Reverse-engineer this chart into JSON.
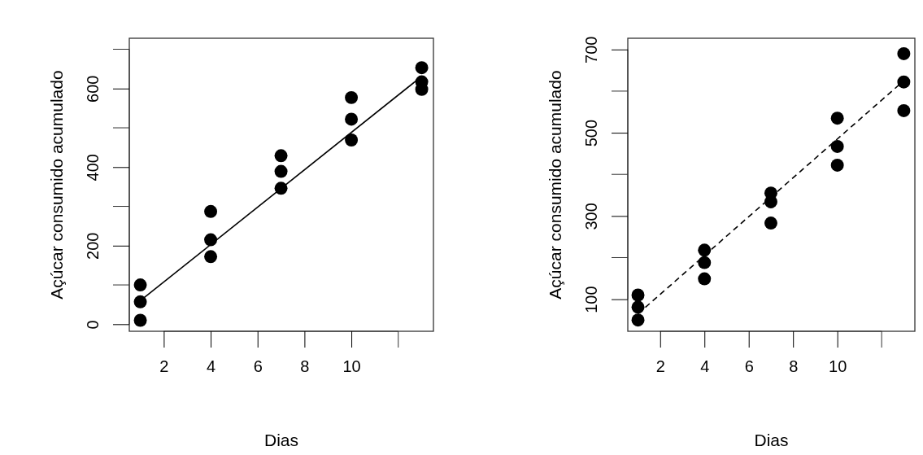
{
  "chart_data": [
    {
      "type": "scatter",
      "xlabel": "Dias",
      "ylabel": "Açúcar consumido acumulado",
      "marker": "circle",
      "grid": false,
      "xlim": [
        0.53,
        13.5
      ],
      "ylim": [
        -18,
        728
      ],
      "xticks": [
        2,
        4,
        6,
        8,
        10
      ],
      "yticks": [
        0,
        200,
        400,
        600
      ],
      "series": [
        {
          "type": "scatter",
          "color": "#000000",
          "x": [
            1,
            1,
            1,
            4,
            4,
            4,
            7,
            7,
            7,
            10,
            10,
            10,
            13,
            13,
            13
          ],
          "values": [
            100,
            57,
            10,
            287,
            215,
            172,
            429,
            389,
            346,
            577,
            522,
            469,
            653,
            617,
            598
          ]
        },
        {
          "type": "line",
          "color": "#000000",
          "line_style": "solid",
          "marker": "none",
          "x": [
            1,
            13
          ],
          "values": [
            60,
            631
          ]
        }
      ]
    },
    {
      "type": "scatter",
      "xlabel": "Dias",
      "ylabel": "Açúcar consumido acumulado",
      "marker": "circle",
      "grid": false,
      "xlim": [
        0.54,
        13.5
      ],
      "ylim": [
        23,
        727
      ],
      "xticks": [
        2,
        4,
        6,
        8,
        10
      ],
      "yticks": [
        100,
        300,
        500,
        700
      ],
      "series": [
        {
          "type": "scatter",
          "color": "#000000",
          "x": [
            1,
            1,
            1,
            4,
            4,
            4,
            7,
            7,
            7,
            10,
            10,
            10,
            13,
            13,
            13
          ],
          "values": [
            110,
            81,
            50,
            218,
            188,
            149,
            355,
            334,
            283,
            535,
            467,
            422,
            690,
            622,
            553
          ]
        },
        {
          "type": "line",
          "color": "#000000",
          "line_style": "dashed",
          "marker": "none",
          "x": [
            1,
            13
          ],
          "values": [
            65,
            625
          ]
        }
      ]
    }
  ]
}
